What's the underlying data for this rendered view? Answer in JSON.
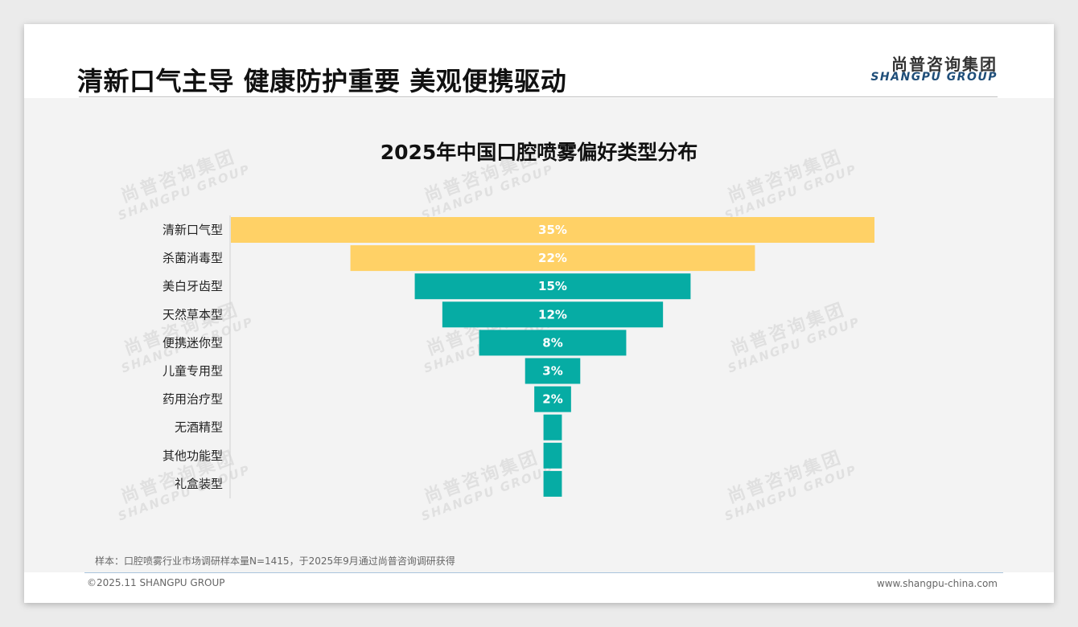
{
  "header": {
    "title": "清新口气主导 健康防护重要 美观便携驱动",
    "logo_cn": "尚普咨询集团",
    "logo_en": "SHANGPU GROUP"
  },
  "watermark": {
    "cn": "尚普咨询集团",
    "en": "SHANGPU GROUP"
  },
  "chart_data": {
    "type": "bar",
    "orientation": "horizontal-funnel",
    "title": "2025年中国口腔喷雾偏好类型分布",
    "categories": [
      "清新口气型",
      "杀菌消毒型",
      "美白牙齿型",
      "天然草本型",
      "便携迷你型",
      "儿童专用型",
      "药用治疗型",
      "无酒精型",
      "其他功能型",
      "礼盒装型"
    ],
    "values": [
      35,
      22,
      15,
      12,
      8,
      3,
      2,
      1,
      1,
      1
    ],
    "data_labels": [
      "35%",
      "22%",
      "15%",
      "12%",
      "8%",
      "3%",
      "2%",
      "",
      "",
      ""
    ],
    "unit": "%",
    "colors": [
      "#ffd166",
      "#ffd166",
      "#06aca4",
      "#06aca4",
      "#06aca4",
      "#06aca4",
      "#06aca4",
      "#06aca4",
      "#06aca4",
      "#06aca4"
    ],
    "legend": "none",
    "grid": false
  },
  "footer": {
    "note": "样本：口腔喷雾行业市场调研样本量N=1415，于2025年9月通过尚普咨询调研获得",
    "copyright": "©2025.11 SHANGPU GROUP",
    "website": "www.shangpu-china.com"
  }
}
